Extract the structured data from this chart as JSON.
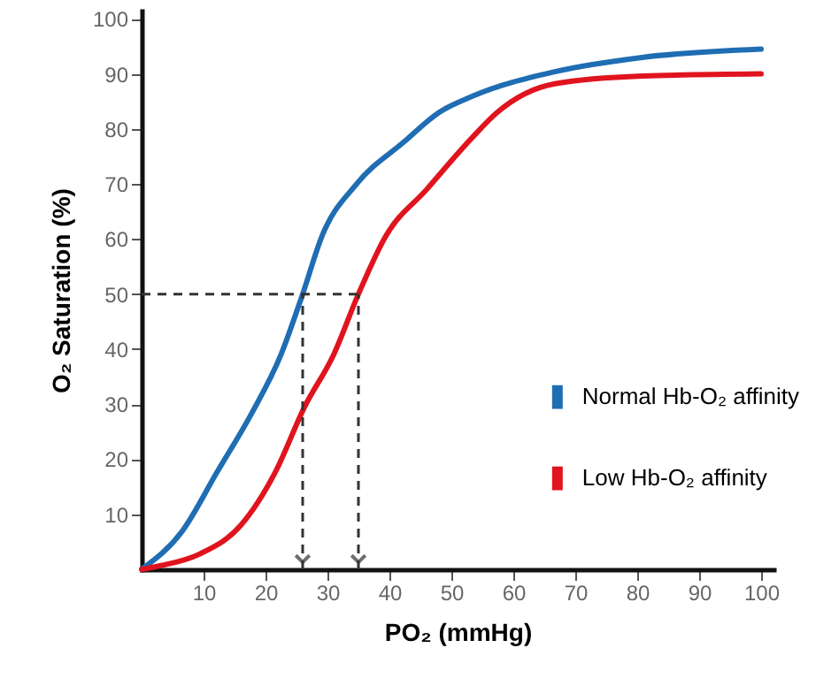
{
  "chart_data": {
    "type": "line",
    "xlabel": "PO₂ (mmHg)",
    "ylabel": "O₂ Saturation (%)",
    "xlim": [
      0,
      102
    ],
    "ylim": [
      0,
      101.5
    ],
    "xticks": [
      10,
      20,
      30,
      40,
      50,
      60,
      70,
      80,
      90,
      100
    ],
    "yticks": [
      10,
      20,
      30,
      40,
      50,
      60,
      70,
      80,
      90,
      100
    ],
    "grid": false,
    "legend": "right",
    "marker": "none",
    "line_style": "solid",
    "series": [
      {
        "name": "Normal Hb-O₂ affinity",
        "color": "#1f6db3",
        "x": [
          0,
          6.6,
          12.2,
          17.8,
          22.5,
          26,
          29.1,
          34.7,
          42.3,
          48,
          53.5,
          66.7,
          80.8,
          100
        ],
        "values": [
          0,
          7,
          17.7,
          28.4,
          39,
          50,
          60.5,
          70,
          77.6,
          83,
          86,
          90.4,
          93,
          94.5
        ]
      },
      {
        "name": "Low Hb-O₂ affinity",
        "color": "#e0141e",
        "x": [
          0,
          2.8,
          9.4,
          16,
          21.6,
          26.3,
          31,
          35,
          39.4,
          46,
          53.5,
          57.3,
          66.7,
          80.8,
          100
        ],
        "values": [
          0,
          0.6,
          2.8,
          8,
          17.7,
          29.5,
          39,
          50,
          60.5,
          69,
          78.6,
          82.9,
          88.2,
          89.6,
          90
        ]
      }
    ],
    "ref_lines": [
      {
        "axis": "y",
        "value": 50,
        "color": "#333333",
        "line_style": "dashed"
      },
      {
        "axis": "x",
        "value": 26,
        "color": "#333333",
        "line_style": "dashed"
      },
      {
        "axis": "x",
        "value": 35,
        "color": "#333333",
        "line_style": "dashed"
      }
    ]
  }
}
